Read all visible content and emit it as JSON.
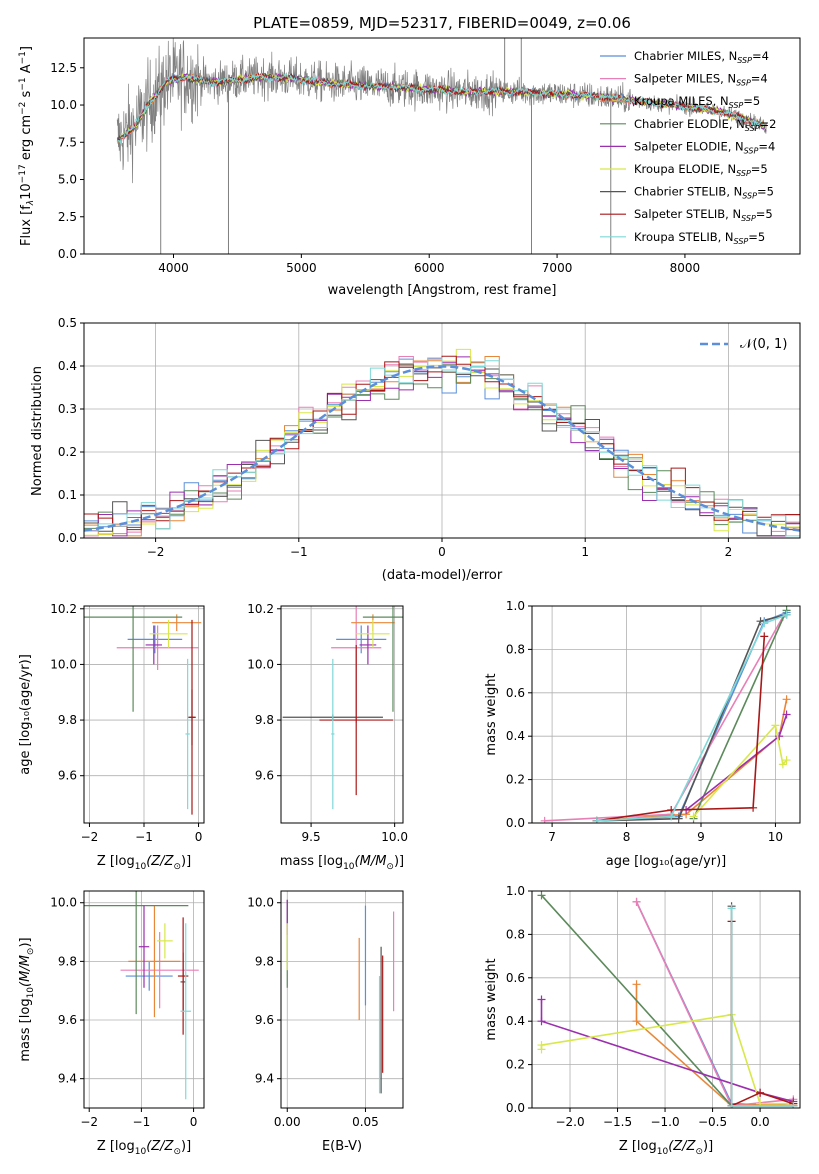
{
  "colors": {
    "chabrier_miles": "#5b8fd9",
    "salpeter_miles": "#e87fb7",
    "kroupa_miles": "#e8873a",
    "chabrier_elodie": "#5c8a5c",
    "salpeter_elodie": "#9b2fae",
    "kroupa_elodie": "#d8e84a",
    "chabrier_stelib": "#555555",
    "salpeter_stelib": "#a81818",
    "kroupa_stelib": "#7fd8d8",
    "grey_spectrum": "#808080",
    "normal_curve": "#5b8fd9",
    "grid": "#b0b0b0"
  },
  "chart_data": [
    {
      "id": "spectrum",
      "type": "line",
      "title": "PLATE=0859, MJD=52317, FIBERID=0049, z=0.06",
      "xlabel": "wavelength [Angstrom, rest frame]",
      "ylabel_parts": [
        "Flux [f",
        "λ",
        "10",
        "−17",
        " erg cm",
        "−2",
        " s",
        "−1",
        " A",
        "−1",
        "]"
      ],
      "xlim": [
        3300,
        8900
      ],
      "ylim": [
        0,
        14.5
      ],
      "xticks": [
        4000,
        5000,
        6000,
        7000,
        8000
      ],
      "xtick_labels": [
        "4000",
        "5000",
        "6000",
        "7000",
        "8000"
      ],
      "yticks": [
        0,
        2.5,
        5,
        7.5,
        10,
        12.5
      ],
      "ytick_labels": [
        "0.0",
        "2.5",
        "5.0",
        "7.5",
        "10.0",
        "12.5"
      ],
      "legend_position": "top-right",
      "legend": [
        {
          "pre": "Chabrier MILES, N",
          "sub": "SSP",
          "post": "=4",
          "color_key": "chabrier_miles"
        },
        {
          "pre": "Salpeter MILES, N",
          "sub": "SSP",
          "post": "=4",
          "color_key": "salpeter_miles"
        },
        {
          "pre": "Kroupa MILES, N",
          "sub": "SSP",
          "post": "=5",
          "color_key": "kroupa_miles"
        },
        {
          "pre": "Chabrier ELODIE, N",
          "sub": "SSP",
          "post": "=2",
          "color_key": "chabrier_elodie"
        },
        {
          "pre": "Salpeter ELODIE, N",
          "sub": "SSP",
          "post": "=4",
          "color_key": "salpeter_elodie"
        },
        {
          "pre": "Kroupa ELODIE, N",
          "sub": "SSP",
          "post": "=5",
          "color_key": "kroupa_elodie"
        },
        {
          "pre": "Chabrier STELIB, N",
          "sub": "SSP",
          "post": "=5",
          "color_key": "chabrier_stelib"
        },
        {
          "pre": "Salpeter STELIB, N",
          "sub": "SSP",
          "post": "=5",
          "color_key": "salpeter_stelib"
        },
        {
          "pre": "Kroupa STELIB, N",
          "sub": "SSP",
          "post": "=5",
          "color_key": "kroupa_stelib"
        }
      ],
      "continuum_knots": [
        [
          3560,
          7.6
        ],
        [
          3700,
          8.6
        ],
        [
          3800,
          10.0
        ],
        [
          3950,
          11.6
        ],
        [
          4100,
          11.9
        ],
        [
          4300,
          11.5
        ],
        [
          4500,
          11.7
        ],
        [
          4700,
          11.9
        ],
        [
          4900,
          11.8
        ],
        [
          5100,
          11.6
        ],
        [
          5300,
          11.4
        ],
        [
          5500,
          11.3
        ],
        [
          5700,
          11.2
        ],
        [
          5900,
          11.1
        ],
        [
          6100,
          11.0
        ],
        [
          6300,
          10.9
        ],
        [
          6500,
          10.9
        ],
        [
          6700,
          10.9
        ],
        [
          6900,
          10.8
        ],
        [
          7100,
          10.7
        ],
        [
          7300,
          10.6
        ],
        [
          7500,
          10.4
        ],
        [
          7700,
          10.2
        ],
        [
          7900,
          10.0
        ],
        [
          8100,
          9.8
        ],
        [
          8300,
          9.5
        ],
        [
          8500,
          9.0
        ],
        [
          8640,
          8.5
        ]
      ],
      "data_range": [
        3560,
        8640
      ],
      "data_noise_scale": 1.5,
      "data_spikes": [
        {
          "x": 4430,
          "y": 0
        },
        {
          "x": 6800,
          "y": 0
        },
        {
          "x": 7420,
          "y": 0
        },
        {
          "x": 3900,
          "y": 0
        },
        {
          "x": 6590,
          "y": 14.5
        },
        {
          "x": 6720,
          "y": 14.5
        }
      ]
    },
    {
      "id": "residual_hist",
      "type": "histogram",
      "xlabel": "(data-model)/error",
      "ylabel": "Normed distribution",
      "xlim": [
        -2.5,
        2.5
      ],
      "ylim": [
        0,
        0.5
      ],
      "xticks": [
        -2,
        -1,
        0,
        1,
        2
      ],
      "xtick_labels": [
        "−2",
        "−1",
        "0",
        "1",
        "2"
      ],
      "yticks": [
        0,
        0.1,
        0.2,
        0.3,
        0.4,
        0.5
      ],
      "ytick_labels": [
        "0.0",
        "0.1",
        "0.2",
        "0.3",
        "0.4",
        "0.5"
      ],
      "bin_edges_range": [
        -2.5,
        2.5
      ],
      "bin_count": 50,
      "normal_label": "𝒩(0, 1)",
      "legend_position": "top-right",
      "series_keys": [
        "chabrier_miles",
        "salpeter_miles",
        "kroupa_miles",
        "chabrier_elodie",
        "salpeter_elodie",
        "kroupa_elodie",
        "chabrier_stelib",
        "salpeter_stelib",
        "kroupa_stelib"
      ],
      "bin_noise": 0.045
    },
    {
      "id": "z_age",
      "type": "errorbar",
      "xlabel_pre": "Z [log",
      "xlabel_sub": "10",
      "xlabel_post": "(Z/Z",
      "xlabel_tail": ")]",
      "ylabel": "age  [log₁₀(age/yr)]",
      "xlim": [
        -2.1,
        0.1
      ],
      "ylim": [
        9.43,
        10.21
      ],
      "xticks": [
        -2,
        -1,
        0
      ],
      "xtick_labels": [
        "−2",
        "−1",
        "0"
      ],
      "yticks": [
        9.6,
        9.8,
        10.0,
        10.2
      ],
      "ytick_labels": [
        "9.6",
        "9.8",
        "10.0",
        "10.2"
      ],
      "points": [
        {
          "k": "chabrier_miles",
          "x": -0.8,
          "y": 10.09,
          "xe": 0.5,
          "ye": 0.05
        },
        {
          "k": "salpeter_miles",
          "x": -0.75,
          "y": 10.06,
          "xe": 0.75,
          "ye": 0.08
        },
        {
          "k": "kroupa_miles",
          "x": -0.4,
          "y": 10.15,
          "xe": 0.45,
          "ye": 0.03
        },
        {
          "k": "chabrier_elodie",
          "x": -1.2,
          "y": 10.17,
          "xe": 0.9,
          "ye": 0.34
        },
        {
          "k": "salpeter_elodie",
          "x": -0.82,
          "y": 10.07,
          "xe": 0.15,
          "ye": 0.07
        },
        {
          "k": "kroupa_elodie",
          "x": -0.55,
          "y": 10.11,
          "xe": 0.35,
          "ye": 0.05
        },
        {
          "k": "chabrier_stelib",
          "x": -0.12,
          "y": 9.81,
          "xe": 0.05,
          "ye": 0.1
        },
        {
          "k": "salpeter_stelib",
          "x": -0.12,
          "y": 9.81,
          "xe": 0.07,
          "ye": 0.35
        },
        {
          "k": "kroupa_stelib",
          "x": -0.2,
          "y": 9.75,
          "xe": 0.04,
          "ye": 0.27
        }
      ]
    },
    {
      "id": "mass_age",
      "type": "errorbar",
      "xlabel_pre": "mass [log",
      "xlabel_sub": "10",
      "xlabel_post": "(M/M",
      "xlabel_tail": ")]",
      "xlim": [
        9.32,
        10.05
      ],
      "ylim": [
        9.43,
        10.21
      ],
      "xticks": [
        9.5,
        10.0
      ],
      "xtick_labels": [
        "9.5",
        "10.0"
      ],
      "yticks": [
        9.6,
        9.8,
        10.0,
        10.2
      ],
      "ytick_labels": [
        "9.6",
        "9.8",
        "10.0",
        "10.2"
      ],
      "points": [
        {
          "k": "chabrier_miles",
          "x": 9.8,
          "y": 10.09,
          "xe": 0.15,
          "ye": 0.05
        },
        {
          "k": "salpeter_miles",
          "x": 9.77,
          "y": 10.06,
          "xe": 0.15,
          "ye": 0.27
        },
        {
          "k": "kroupa_miles",
          "x": 9.87,
          "y": 10.15,
          "xe": 0.13,
          "ye": 0.03
        },
        {
          "k": "chabrier_elodie",
          "x": 9.99,
          "y": 10.17,
          "xe": 0.18,
          "ye": 0.34
        },
        {
          "k": "salpeter_elodie",
          "x": 9.84,
          "y": 10.07,
          "xe": 0.05,
          "ye": 0.07
        },
        {
          "k": "kroupa_elodie",
          "x": 9.87,
          "y": 10.11,
          "xe": 0.1,
          "ye": 0.05
        },
        {
          "k": "chabrier_stelib",
          "x": 9.63,
          "y": 9.81,
          "xe": 0.3,
          "ye": 0.01
        },
        {
          "k": "salpeter_stelib",
          "x": 9.77,
          "y": 9.8,
          "xe": 0.22,
          "ye": 0.27
        },
        {
          "k": "kroupa_stelib",
          "x": 9.63,
          "y": 9.75,
          "xe": 0.01,
          "ye": 0.27
        }
      ]
    },
    {
      "id": "age_weight",
      "type": "line",
      "xlabel": "age  [log₁₀(age/yr)]",
      "ylabel": "mass weight",
      "xlim": [
        6.73,
        10.33
      ],
      "ylim": [
        0,
        1
      ],
      "xticks": [
        7,
        8,
        9,
        10
      ],
      "xtick_labels": [
        "7",
        "8",
        "9",
        "10"
      ],
      "yticks": [
        0,
        0.2,
        0.4,
        0.6,
        0.8,
        1.0
      ],
      "ytick_labels": [
        "0.0",
        "0.2",
        "0.4",
        "0.6",
        "0.8",
        "1.0"
      ],
      "series": [
        {
          "k": "chabrier_miles",
          "x": [
            7.6,
            8.7,
            9.85,
            10.15
          ],
          "y": [
            0.01,
            0.03,
            0.93,
            0.97
          ]
        },
        {
          "k": "salpeter_miles",
          "x": [
            6.9,
            8.6,
            10.1
          ],
          "y": [
            0.01,
            0.04,
            0.95
          ]
        },
        {
          "k": "kroupa_miles",
          "x": [
            7.6,
            8.8,
            10.05,
            10.15
          ],
          "y": [
            0.01,
            0.04,
            0.4,
            0.57
          ]
        },
        {
          "k": "chabrier_elodie",
          "x": [
            8.9,
            10.15
          ],
          "y": [
            0.02,
            0.98
          ]
        },
        {
          "k": "salpeter_elodie",
          "x": [
            8.8,
            10.05,
            10.15
          ],
          "y": [
            0.06,
            0.4,
            0.5
          ]
        },
        {
          "k": "kroupa_elodie",
          "x": [
            8.9,
            10.0,
            10.1,
            10.15
          ],
          "y": [
            0.03,
            0.45,
            0.27,
            0.29
          ]
        },
        {
          "k": "chabrier_stelib",
          "x": [
            7.6,
            8.7,
            9.8,
            10.15
          ],
          "y": [
            0.01,
            0.02,
            0.93,
            0.96
          ]
        },
        {
          "k": "salpeter_stelib",
          "x": [
            7.6,
            8.6,
            9.7,
            9.85
          ],
          "y": [
            0.01,
            0.06,
            0.07,
            0.86
          ]
        },
        {
          "k": "kroupa_stelib",
          "x": [
            7.6,
            8.6,
            9.85,
            10.15
          ],
          "y": [
            0.01,
            0.03,
            0.92,
            0.96
          ]
        }
      ]
    },
    {
      "id": "z_mass",
      "type": "errorbar",
      "xlabel_pre": "Z [log",
      "xlabel_sub": "10",
      "xlabel_post": "(Z/Z",
      "xlabel_tail": ")]",
      "ylabel_pre": "mass [log",
      "ylabel_sub": "10",
      "ylabel_post": "(M/M",
      "ylabel_tail": ")]",
      "xlim": [
        -2.1,
        0.2
      ],
      "ylim": [
        9.3,
        10.04
      ],
      "xticks": [
        -2,
        -1,
        0
      ],
      "xtick_labels": [
        "−2",
        "−1",
        "0"
      ],
      "yticks": [
        9.4,
        9.6,
        9.8,
        10.0
      ],
      "ytick_labels": [
        "9.4",
        "9.6",
        "9.8",
        "10.0"
      ],
      "points": [
        {
          "k": "chabrier_miles",
          "x": -0.85,
          "y": 9.75,
          "xe": 0.45,
          "ye": 0.05
        },
        {
          "k": "salpeter_miles",
          "x": -0.65,
          "y": 9.77,
          "xe": 0.75,
          "ye": 0.13
        },
        {
          "k": "kroupa_miles",
          "x": -0.75,
          "y": 9.8,
          "xe": 0.5,
          "ye": 0.19
        },
        {
          "k": "chabrier_elodie",
          "x": -1.1,
          "y": 9.99,
          "xe": 1.0,
          "ye": 0.37
        },
        {
          "k": "salpeter_elodie",
          "x": -0.95,
          "y": 9.85,
          "xe": 0.1,
          "ye": 0.14
        },
        {
          "k": "kroupa_elodie",
          "x": -0.55,
          "y": 9.87,
          "xe": 0.15,
          "ye": 0.06
        },
        {
          "k": "chabrier_stelib",
          "x": -0.2,
          "y": 9.73,
          "xe": 0.05,
          "ye": 0.1
        },
        {
          "k": "salpeter_stelib",
          "x": -0.2,
          "y": 9.75,
          "xe": 0.1,
          "ye": 0.2
        },
        {
          "k": "kroupa_stelib",
          "x": -0.15,
          "y": 9.63,
          "xe": 0.1,
          "ye": 0.3
        }
      ]
    },
    {
      "id": "ebv_mass",
      "type": "errorbar",
      "xlabel": "E(B-V)",
      "xlim": [
        -0.004,
        0.074
      ],
      "ylim": [
        9.3,
        10.04
      ],
      "xticks": [
        0.0,
        0.05
      ],
      "xtick_labels": [
        "0.00",
        "0.05"
      ],
      "yticks": [
        9.4,
        9.6,
        9.8,
        10.0
      ],
      "ytick_labels": [
        "9.4",
        "9.6",
        "9.8",
        "10.0"
      ],
      "points": [
        {
          "k": "chabrier_miles",
          "x": 0.05,
          "y": 9.82,
          "xe": 0,
          "ye": 0.17
        },
        {
          "k": "salpeter_miles",
          "x": 0.068,
          "y": 9.8,
          "xe": 0,
          "ye": 0.17
        },
        {
          "k": "kroupa_miles",
          "x": 0.046,
          "y": 9.74,
          "xe": 0,
          "ye": 0.14
        },
        {
          "k": "chabrier_elodie",
          "x": 0.0,
          "y": 9.86,
          "xe": 0,
          "ye": 0.15
        },
        {
          "k": "salpeter_elodie",
          "x": 0.0,
          "y": 9.95,
          "xe": 0,
          "ye": 0.06
        },
        {
          "k": "kroupa_elodie",
          "x": 0.0,
          "y": 9.85,
          "xe": 0,
          "ye": 0.08
        },
        {
          "k": "chabrier_stelib",
          "x": 0.06,
          "y": 9.6,
          "xe": 0,
          "ye": 0.25
        },
        {
          "k": "salpeter_stelib",
          "x": 0.061,
          "y": 9.62,
          "xe": 0,
          "ye": 0.2
        },
        {
          "k": "kroupa_stelib",
          "x": 0.059,
          "y": 9.55,
          "xe": 0,
          "ye": 0.2
        }
      ]
    },
    {
      "id": "z_weight",
      "type": "line",
      "xlabel_pre": "Z [log",
      "xlabel_sub": "10",
      "xlabel_post": "(Z/Z",
      "xlabel_tail": ")]",
      "ylabel": "mass weight",
      "xlim": [
        -2.4,
        0.42
      ],
      "ylim": [
        0,
        1
      ],
      "xticks": [
        -2.0,
        -1.5,
        -1.0,
        -0.5,
        0.0
      ],
      "xtick_labels": [
        "−2.0",
        "−1.5",
        "−1.0",
        "−0.5",
        "0.0"
      ],
      "yticks": [
        0,
        0.2,
        0.4,
        0.6,
        0.8,
        1.0
      ],
      "ytick_labels": [
        "0.0",
        "0.2",
        "0.4",
        "0.6",
        "0.8",
        "1.0"
      ],
      "series": [
        {
          "k": "chabrier_miles",
          "x": [
            -1.3,
            -0.3,
            0.35
          ],
          "y": [
            0.95,
            0.02,
            0.01
          ]
        },
        {
          "k": "salpeter_miles",
          "x": [
            -1.3,
            -0.3,
            0.35
          ],
          "y": [
            0.95,
            0.01,
            0.04
          ]
        },
        {
          "k": "kroupa_miles",
          "x": [
            -1.3,
            -1.3,
            -0.3,
            0.35
          ],
          "y": [
            0.57,
            0.4,
            0.01,
            0.02
          ]
        },
        {
          "k": "chabrier_elodie",
          "x": [
            -2.3,
            -0.3,
            0.35
          ],
          "y": [
            0.98,
            0.01,
            0.01
          ]
        },
        {
          "k": "salpeter_elodie",
          "x": [
            -2.3,
            -2.3,
            0.0,
            0.35
          ],
          "y": [
            0.5,
            0.4,
            0.07,
            0.03
          ]
        },
        {
          "k": "kroupa_elodie",
          "x": [
            -2.3,
            -2.3,
            -0.3,
            0.0,
            0.35
          ],
          "y": [
            0.27,
            0.29,
            0.43,
            0.02,
            0.02
          ]
        },
        {
          "k": "chabrier_stelib",
          "x": [
            -0.3,
            -0.3,
            0.35
          ],
          "y": [
            0.93,
            0.01,
            0.01
          ]
        },
        {
          "k": "salpeter_stelib",
          "x": [
            -0.3,
            -0.3,
            0.0,
            0.35
          ],
          "y": [
            0.86,
            0.01,
            0.07,
            0.02
          ]
        },
        {
          "k": "kroupa_stelib",
          "x": [
            -0.3,
            -0.3,
            0.35
          ],
          "y": [
            0.92,
            0.01,
            0.01
          ]
        }
      ]
    }
  ]
}
